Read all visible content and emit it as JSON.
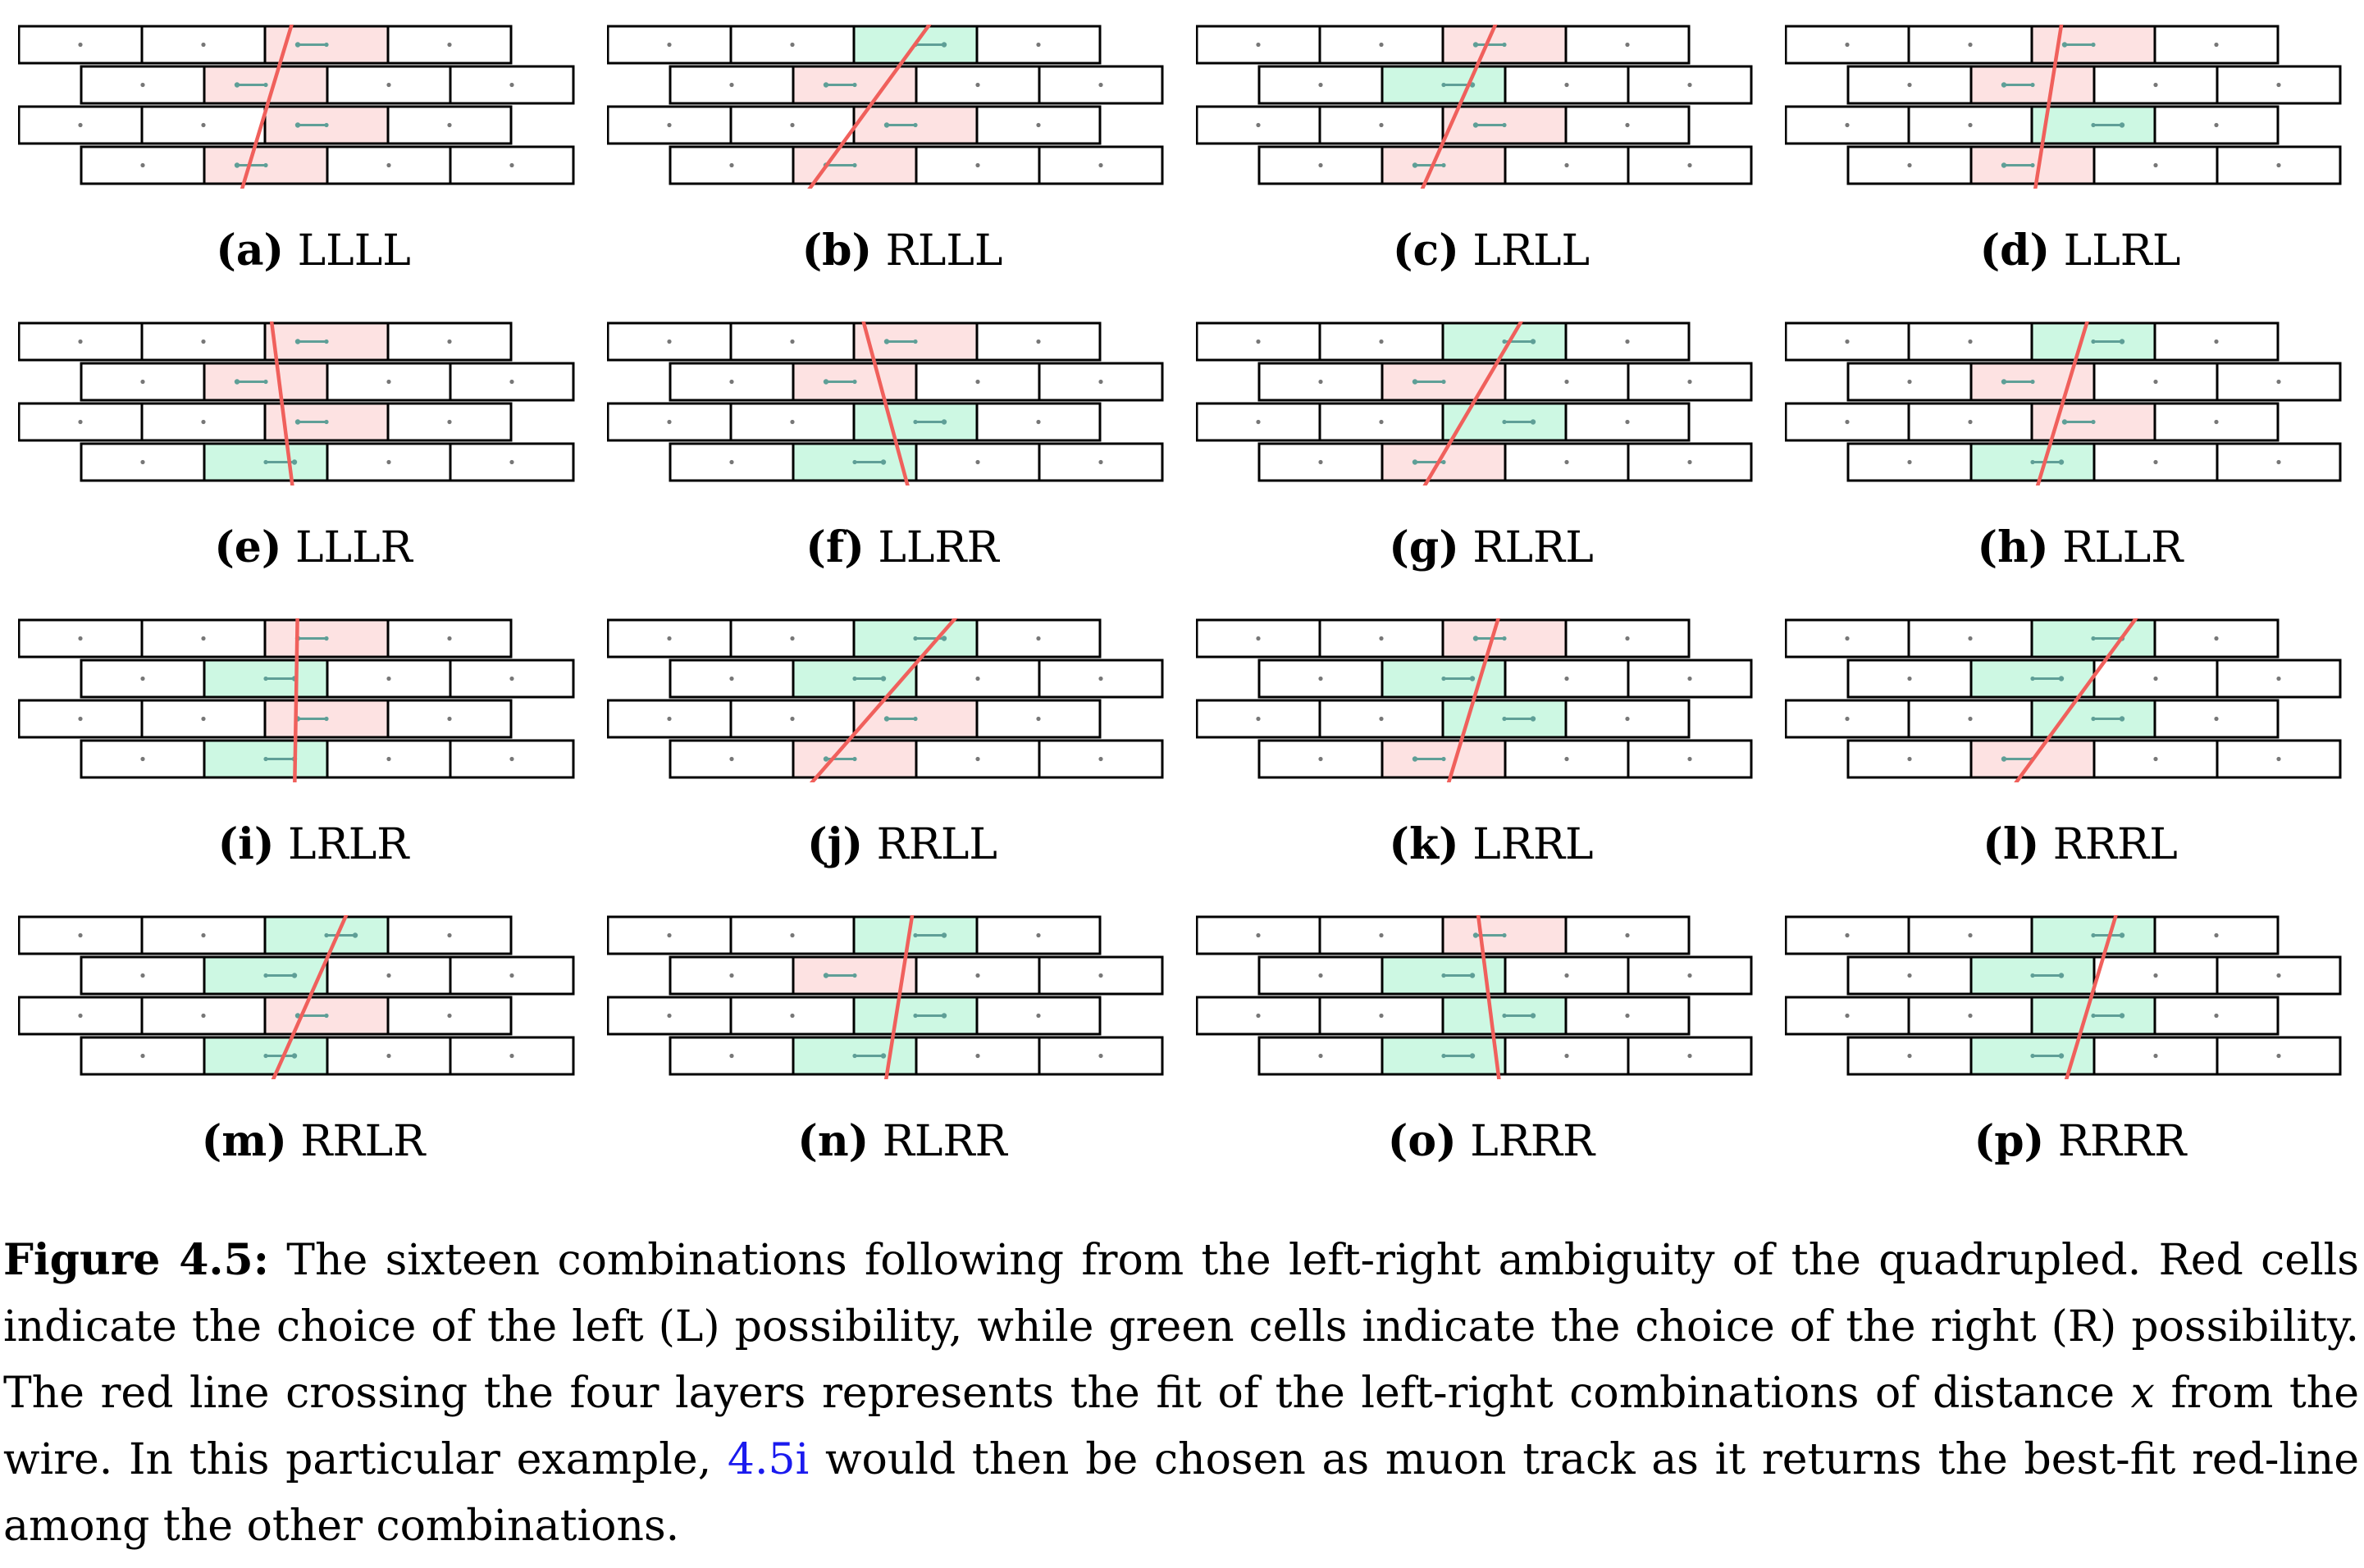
{
  "colors": {
    "left_cell": "#fde2e2",
    "right_cell": "#cdf8e3",
    "fit_line": "#f0605c",
    "wire": "#5f9f97",
    "border": "#000000"
  },
  "panels": [
    {
      "tag": "(a)",
      "combo": "LLLL"
    },
    {
      "tag": "(b)",
      "combo": "RLLL"
    },
    {
      "tag": "(c)",
      "combo": "LRLL"
    },
    {
      "tag": "(d)",
      "combo": "LLRL"
    },
    {
      "tag": "(e)",
      "combo": "LLLR"
    },
    {
      "tag": "(f)",
      "combo": "LLRR"
    },
    {
      "tag": "(g)",
      "combo": "RLRL"
    },
    {
      "tag": "(h)",
      "combo": "RLLR"
    },
    {
      "tag": "(i)",
      "combo": "LRLR"
    },
    {
      "tag": "(j)",
      "combo": "RRLL"
    },
    {
      "tag": "(k)",
      "combo": "LRRL"
    },
    {
      "tag": "(l)",
      "combo": "RRRL"
    },
    {
      "tag": "(m)",
      "combo": "RRLR"
    },
    {
      "tag": "(n)",
      "combo": "RLRR"
    },
    {
      "tag": "(o)",
      "combo": "LRRR"
    },
    {
      "tag": "(p)",
      "combo": "RRRR"
    }
  ],
  "caption": {
    "label": "Figure 4.5:",
    "text_before_ref": " The sixteen combinations following from the left-right ambiguity of the quadrupled. Red cells indicate the choice of the left (L) possibility, while green cells indicate the choice of the right (R) possibility. The red line crossing the four layers represents the fit of the left-right combinations of distance ",
    "var": "x",
    "text_mid": " from the wire. In this particular example, ",
    "ref": "4.5i",
    "text_after_ref": " would then be chosen as muon track as it returns the best-fit red-line among the other combinations."
  }
}
